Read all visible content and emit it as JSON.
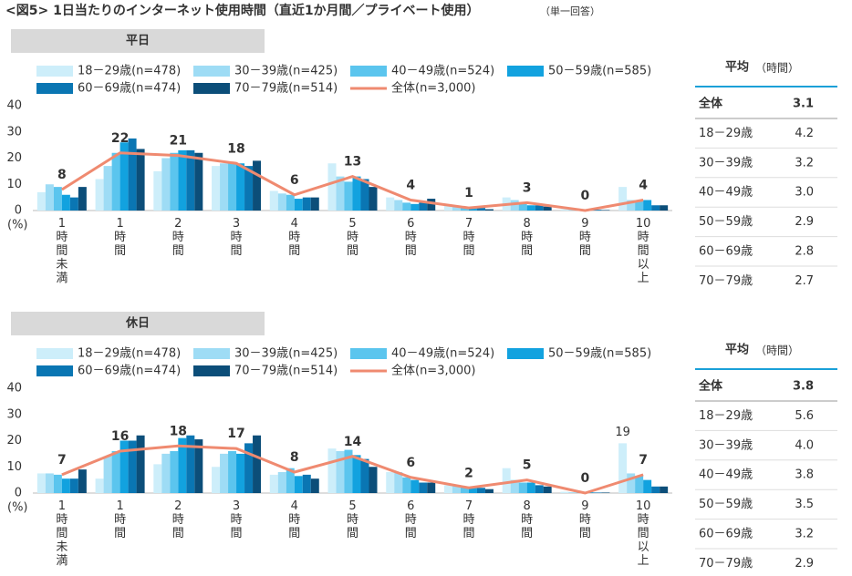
{
  "header": {
    "title": "<図5> 1日当たりのインターネット使用時間（直近1か月間／プライベート使用）",
    "note": "（単一回答）"
  },
  "chart_data": [
    {
      "type": "bar",
      "title": "平日",
      "y_label": "(%)",
      "ylim": [
        0,
        40
      ],
      "yticks": [
        0,
        10,
        20,
        30,
        40
      ],
      "categories": [
        "1時間未満",
        "1時間",
        "2時間",
        "3時間",
        "4時間",
        "5時間",
        "6時間",
        "7時間",
        "8時間",
        "9時間",
        "10時間以上"
      ],
      "series": [
        {
          "name": "18－29歳(n=478)",
          "color": "#cdeefa",
          "values": [
            7,
            12,
            15,
            17,
            7.5,
            18,
            5,
            2,
            5,
            0.5,
            9
          ]
        },
        {
          "name": "30－39歳(n=425)",
          "color": "#9edcf5",
          "values": [
            10,
            17,
            20,
            18,
            6.5,
            13,
            4,
            1.5,
            4,
            0.3,
            4
          ]
        },
        {
          "name": "40－49歳(n=524)",
          "color": "#5bc5ee",
          "values": [
            9,
            22,
            22,
            18,
            6,
            11,
            3,
            1,
            3,
            0.3,
            4
          ]
        },
        {
          "name": "50－59歳(n=585)",
          "color": "#12a2df",
          "values": [
            6,
            26,
            23,
            18,
            4.5,
            13,
            2.5,
            1,
            2,
            0.2,
            4
          ]
        },
        {
          "name": "60－69歳(n=474)",
          "color": "#0a76b3",
          "values": [
            5,
            27.5,
            23,
            17,
            5,
            12,
            3,
            1,
            2,
            0.3,
            2
          ]
        },
        {
          "name": "70－79歳(n=514)",
          "color": "#0c4e79",
          "values": [
            9,
            23.5,
            22,
            19,
            5,
            9,
            4.5,
            0.5,
            1.5,
            0.2,
            2
          ]
        },
        {
          "name": "全体(n=3,000)",
          "color": "#ef8a70",
          "type": "line",
          "show_values": true,
          "values": [
            8,
            22,
            21,
            18,
            6,
            13,
            4,
            1,
            3,
            0,
            4
          ]
        }
      ]
    },
    {
      "type": "bar",
      "title": "休日",
      "y_label": "(%)",
      "ylim": [
        0,
        40
      ],
      "yticks": [
        0,
        10,
        20,
        30,
        40
      ],
      "categories": [
        "1時間未満",
        "1時間",
        "2時間",
        "3時間",
        "4時間",
        "5時間",
        "6時間",
        "7時間",
        "8時間",
        "9時間",
        "10時間以上"
      ],
      "series": [
        {
          "name": "18－29歳(n=478)",
          "color": "#cdeefa",
          "values": [
            7.5,
            5.5,
            11,
            10,
            7,
            17,
            8,
            3,
            9.5,
            0.5,
            19
          ],
          "value_labels": [
            null,
            null,
            null,
            null,
            null,
            null,
            null,
            null,
            null,
            null,
            "19"
          ],
          "label_color": "#12a2df"
        },
        {
          "name": "30－39歳(n=425)",
          "color": "#9edcf5",
          "values": [
            7.5,
            14,
            15,
            15,
            8,
            16,
            8,
            3,
            5,
            0.3,
            7.5
          ]
        },
        {
          "name": "40－49歳(n=524)",
          "color": "#5bc5ee",
          "values": [
            7,
            16,
            16,
            16,
            9.5,
            16.5,
            6,
            2.5,
            4,
            0.3,
            6.5
          ]
        },
        {
          "name": "50－59歳(n=585)",
          "color": "#12a2df",
          "values": [
            5.5,
            20,
            21,
            15,
            6.5,
            14.5,
            5,
            2,
            4,
            0.3,
            5
          ]
        },
        {
          "name": "60－69歳(n=474)",
          "color": "#0a76b3",
          "values": [
            5.5,
            20,
            22,
            19,
            7,
            13,
            4,
            2,
            3,
            0.2,
            2.5
          ]
        },
        {
          "name": "70－79歳(n=514)",
          "color": "#0c4e79",
          "values": [
            9,
            22,
            20.5,
            22,
            5.5,
            10,
            4,
            1.5,
            2.5,
            0.2,
            2.5
          ]
        },
        {
          "name": "全体(n=3,000)",
          "color": "#ef8a70",
          "type": "line",
          "show_values": true,
          "values": [
            7,
            16,
            18,
            17,
            8,
            14,
            6,
            2,
            5,
            0,
            7
          ]
        }
      ]
    }
  ],
  "averages": [
    {
      "title": "平均",
      "unit": "（時間）",
      "rows": [
        [
          "全体",
          "3.1"
        ],
        [
          "18－29歳",
          "4.2"
        ],
        [
          "30－39歳",
          "3.2"
        ],
        [
          "40－49歳",
          "3.0"
        ],
        [
          "50－59歳",
          "2.9"
        ],
        [
          "60－69歳",
          "2.8"
        ],
        [
          "70－79歳",
          "2.7"
        ]
      ]
    },
    {
      "title": "平均",
      "unit": "（時間）",
      "rows": [
        [
          "全体",
          "3.8"
        ],
        [
          "18－29歳",
          "5.6"
        ],
        [
          "30－39歳",
          "4.0"
        ],
        [
          "40－49歳",
          "3.8"
        ],
        [
          "50－59歳",
          "3.5"
        ],
        [
          "60－69歳",
          "3.2"
        ],
        [
          "70－79歳",
          "2.9"
        ]
      ]
    }
  ]
}
